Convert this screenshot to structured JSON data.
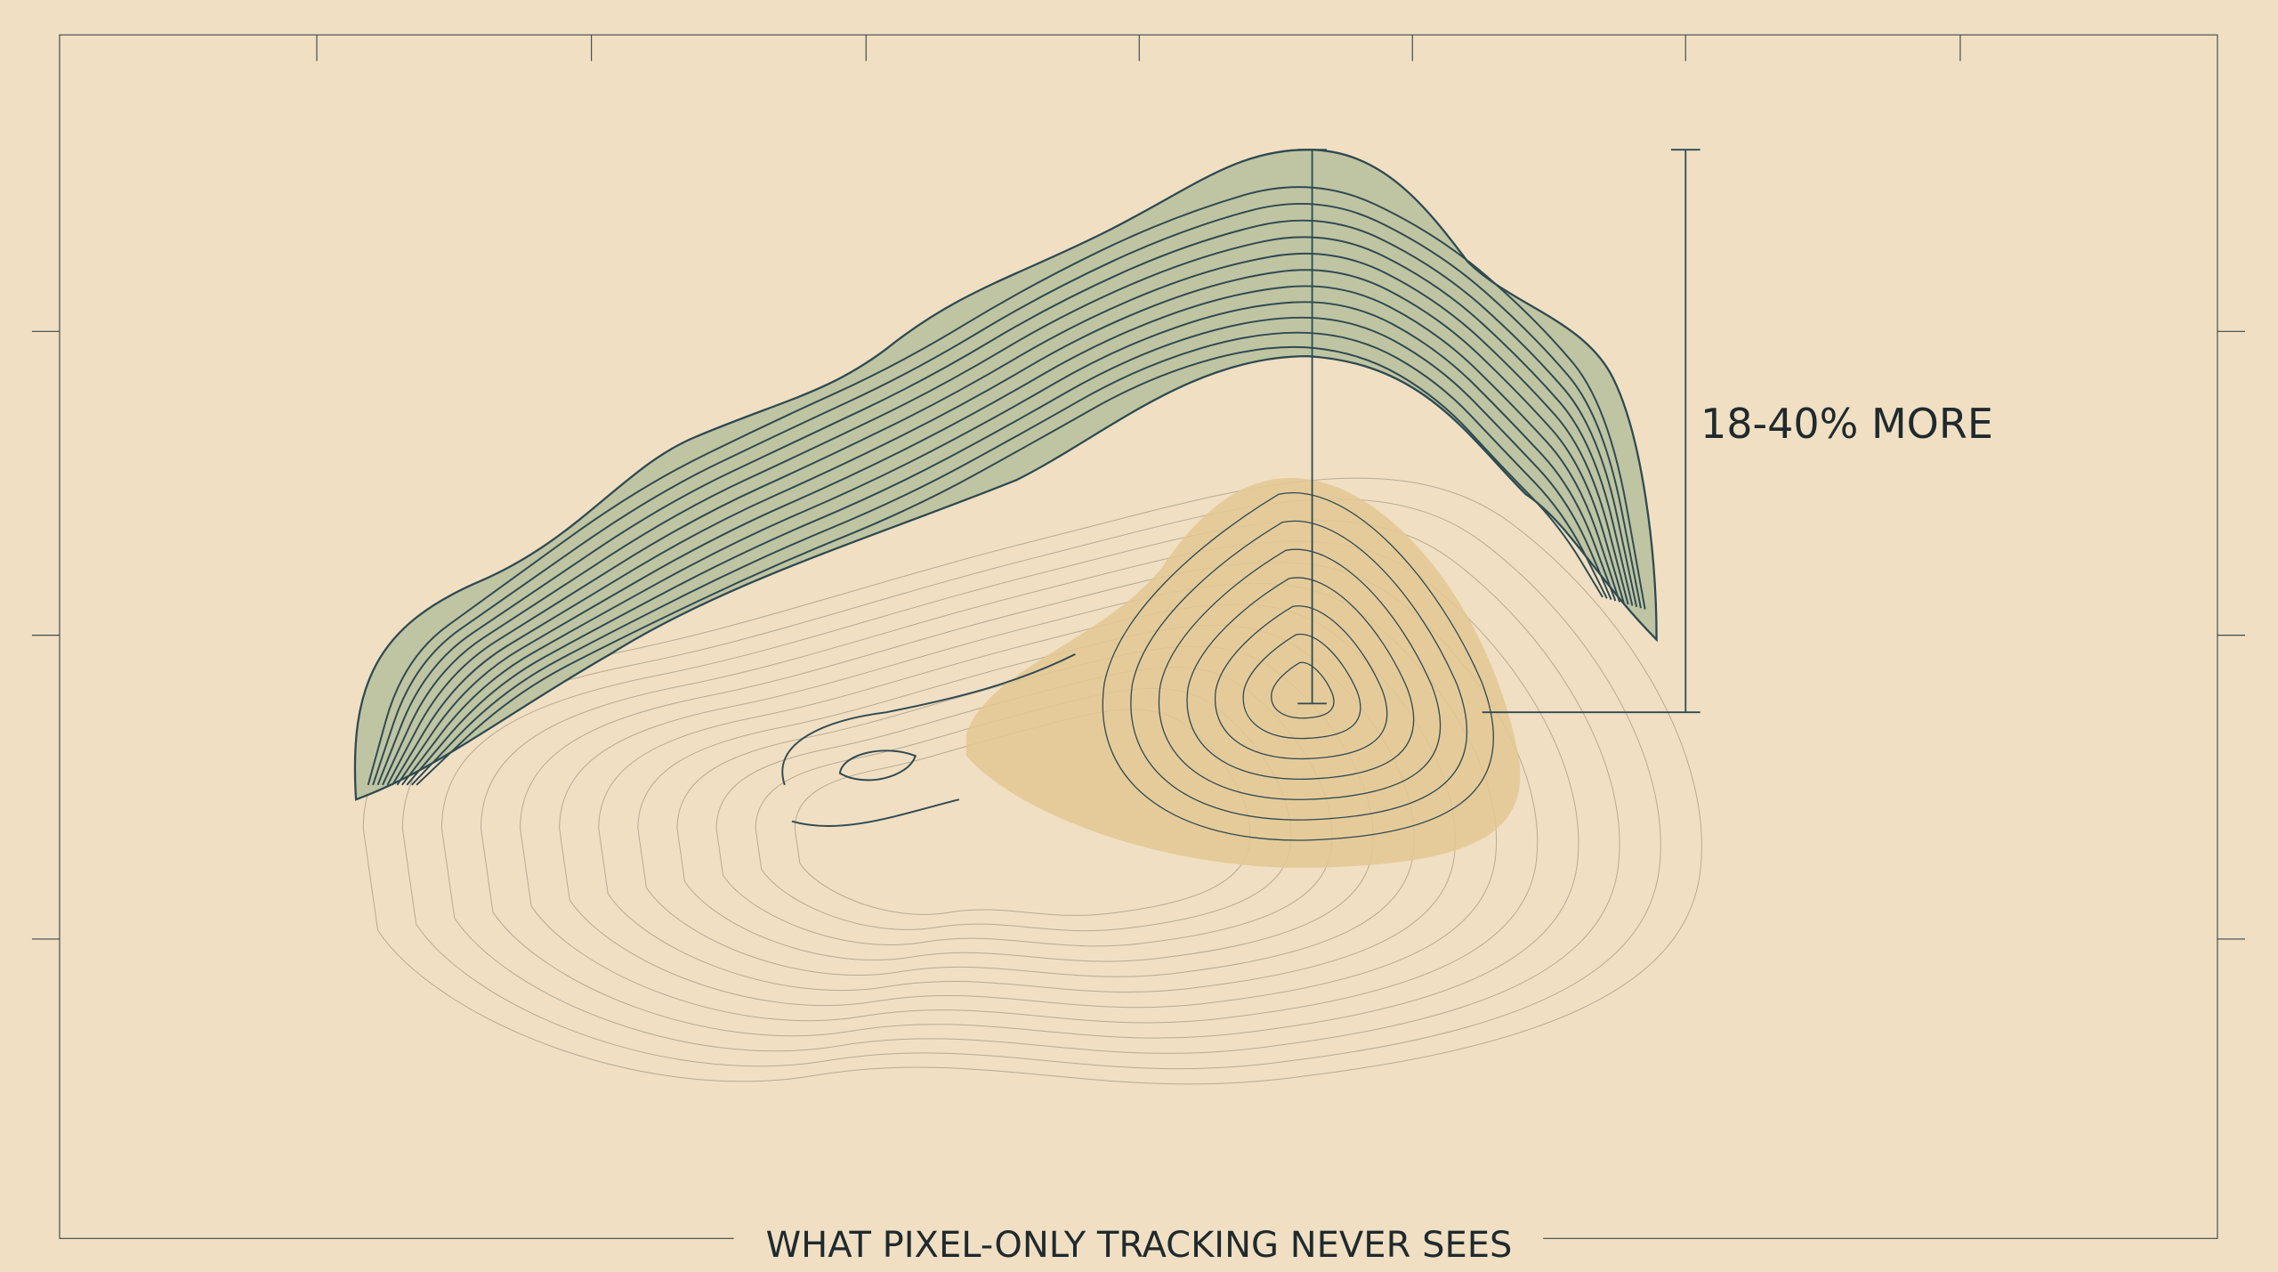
{
  "annotation": {
    "label": "18-40% MORE"
  },
  "caption": "WHAT PIXEL-ONLY TRACKING NEVER SEES"
}
